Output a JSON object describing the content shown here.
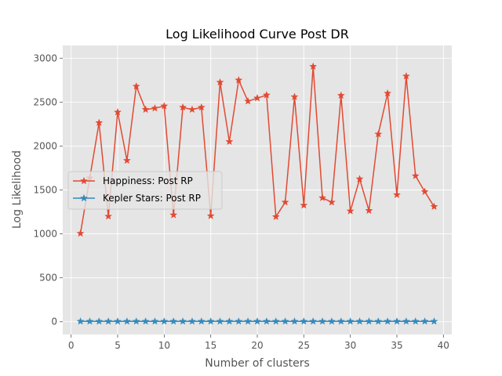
{
  "chart_data": {
    "type": "line",
    "title": "Log Likelihood Curve Post DR",
    "xlabel": "Number of clusters",
    "ylabel": "Log Likelihood",
    "xlim": [
      -0.9,
      40.9
    ],
    "ylim": [
      -145,
      3145
    ],
    "xticks": [
      0,
      5,
      10,
      15,
      20,
      25,
      30,
      35,
      40
    ],
    "yticks": [
      0,
      500,
      1000,
      1500,
      2000,
      2500,
      3000
    ],
    "grid": true,
    "legend_position": "center-left",
    "x": [
      1,
      2,
      3,
      4,
      5,
      6,
      7,
      8,
      9,
      10,
      11,
      12,
      13,
      14,
      15,
      16,
      17,
      18,
      19,
      20,
      21,
      22,
      23,
      24,
      25,
      26,
      27,
      28,
      29,
      30,
      31,
      32,
      33,
      34,
      35,
      36,
      37,
      38,
      39
    ],
    "series": [
      {
        "name": "Happiness: Post RP",
        "color": "#E24A33",
        "marker": "star",
        "values": [
          1005,
          1635,
          2265,
          1200,
          2385,
          1835,
          2680,
          2415,
          2430,
          2455,
          1215,
          2440,
          2415,
          2440,
          1205,
          2725,
          2050,
          2750,
          2510,
          2545,
          2580,
          1195,
          1360,
          2560,
          1325,
          2905,
          1410,
          1360,
          2575,
          1260,
          1625,
          1265,
          2135,
          2600,
          1445,
          2795,
          1660,
          1480,
          1310
        ]
      },
      {
        "name": "Kepler Stars: Post RP",
        "color": "#348ABD",
        "marker": "star",
        "values": [
          4,
          4,
          4,
          4,
          4,
          4,
          4,
          4,
          4,
          4,
          4,
          4,
          4,
          4,
          4,
          4,
          4,
          4,
          4,
          4,
          4,
          4,
          4,
          4,
          4,
          4,
          4,
          4,
          4,
          4,
          4,
          4,
          4,
          4,
          4,
          4,
          4,
          4,
          4
        ]
      }
    ]
  }
}
